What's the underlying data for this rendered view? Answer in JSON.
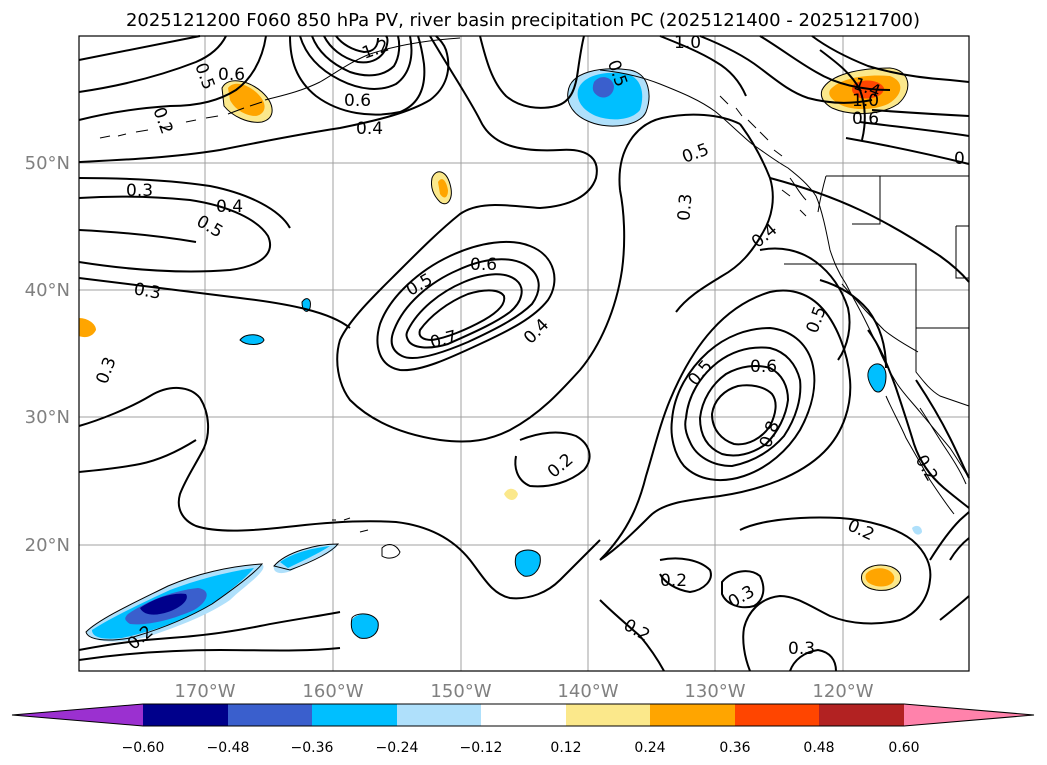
{
  "title": "2025121200 F060 850 hPa PV, river basin precipitation PC (2025121400 - 2025121700)",
  "lat_labels": [
    "50°N",
    "40°N",
    "30°N",
    "20°N"
  ],
  "lon_labels": [
    "170°W",
    "160°W",
    "150°W",
    "140°W",
    "130°W",
    "120°W"
  ],
  "colorbar": {
    "ticks": [
      "−0.60",
      "−0.48",
      "−0.36",
      "−0.24",
      "−0.12",
      "0.12",
      "0.24",
      "0.36",
      "0.48",
      "0.60"
    ],
    "colors": [
      "#9b30d0",
      "#00008b",
      "#3a5fcd",
      "#00bfff",
      "#afe0fb",
      "#ffffff",
      "#fbe88b",
      "#ffa500",
      "#ff4500",
      "#b22222",
      "#ff82ab"
    ]
  },
  "contour_labels": {
    "c1": "0.5",
    "c2": "0.6",
    "c3": "1.2",
    "c4": "0.6",
    "c5": "0.4",
    "c6": "0.2",
    "c7": "0.3",
    "c8": "0.4",
    "c9": "0.5",
    "c10": "0.3",
    "c11": "0.3",
    "c12": "0.5",
    "c13": "0.6",
    "c14": "0.7",
    "c15": "0.4",
    "c16": "0.3",
    "c17": "0.5",
    "c18": "0.4",
    "c19": "1.0",
    "c20": "1.4",
    "c21": "1.0",
    "c22": "0.6",
    "c23": "0.5",
    "c24": "0.5",
    "c25": "0.6",
    "c26": "0.8",
    "c27": "0.2",
    "c28": "0.2",
    "c29": "0.2",
    "c30": "0.2",
    "c31": "0.3",
    "c32": "0.2",
    "c33": "0.3",
    "c34": "0.2",
    "c35": "0.5",
    "c36": "0"
  }
}
